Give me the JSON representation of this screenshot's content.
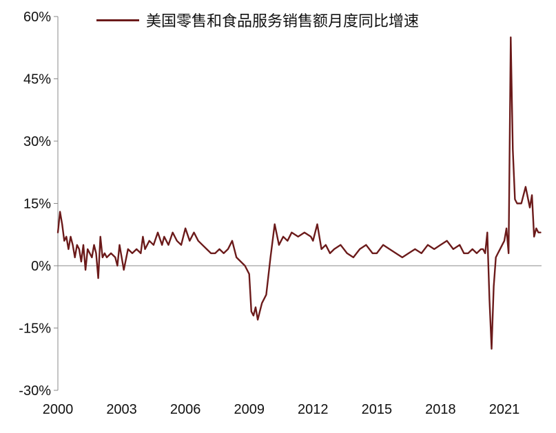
{
  "chart_data": {
    "type": "line",
    "title": "",
    "xlabel": "",
    "ylabel": "",
    "legend_position": "top",
    "grid": false,
    "ylim": [
      -30,
      60
    ],
    "y_ticks": [
      -30,
      -15,
      0,
      15,
      30,
      45,
      60
    ],
    "y_tick_labels": [
      "-30%",
      "-15%",
      "0%",
      "15%",
      "30%",
      "45%",
      "60%"
    ],
    "x_tick_labels": [
      "2000",
      "2003",
      "2006",
      "2009",
      "2012",
      "2015",
      "2018",
      "2021"
    ],
    "series": [
      {
        "name": "美国零售和食品服务销售额月度同比增速",
        "color": "#6b1a1a",
        "x": [
          2000.0,
          2000.1,
          2000.2,
          2000.3,
          2000.4,
          2000.5,
          2000.6,
          2000.7,
          2000.8,
          2000.9,
          2001.0,
          2001.1,
          2001.2,
          2001.3,
          2001.4,
          2001.5,
          2001.6,
          2001.7,
          2001.8,
          2001.9,
          2002.0,
          2002.1,
          2002.2,
          2002.3,
          2002.5,
          2002.7,
          2002.8,
          2002.9,
          2003.0,
          2003.1,
          2003.3,
          2003.5,
          2003.7,
          2003.9,
          2004.0,
          2004.1,
          2004.3,
          2004.5,
          2004.7,
          2004.9,
          2005.0,
          2005.2,
          2005.4,
          2005.6,
          2005.8,
          2006.0,
          2006.2,
          2006.4,
          2006.6,
          2006.8,
          2007.0,
          2007.2,
          2007.4,
          2007.6,
          2007.8,
          2008.0,
          2008.2,
          2008.4,
          2008.6,
          2008.8,
          2009.0,
          2009.1,
          2009.2,
          2009.3,
          2009.4,
          2009.5,
          2009.6,
          2009.8,
          2010.0,
          2010.2,
          2010.4,
          2010.6,
          2010.8,
          2011.0,
          2011.3,
          2011.6,
          2011.9,
          2012.0,
          2012.2,
          2012.4,
          2012.6,
          2012.8,
          2013.0,
          2013.3,
          2013.6,
          2013.9,
          2014.2,
          2014.5,
          2014.8,
          2015.0,
          2015.3,
          2015.6,
          2015.9,
          2016.2,
          2016.5,
          2016.8,
          2017.1,
          2017.4,
          2017.7,
          2018.0,
          2018.3,
          2018.6,
          2018.9,
          2019.1,
          2019.3,
          2019.5,
          2019.7,
          2019.9,
          2020.0,
          2020.1,
          2020.2,
          2020.3,
          2020.4,
          2020.5,
          2020.6,
          2020.7,
          2020.8,
          2020.9,
          2021.0,
          2021.1,
          2021.2,
          2021.3,
          2021.4,
          2021.5,
          2021.6,
          2021.8,
          2022.0,
          2022.2,
          2022.3,
          2022.4,
          2022.5,
          2022.6,
          2022.7
        ],
        "values": [
          8,
          13,
          10,
          6,
          7,
          4,
          7,
          5,
          2,
          5,
          4,
          1,
          5,
          -1,
          4,
          3,
          2,
          5,
          3,
          -3,
          7,
          2,
          3,
          2,
          3,
          2,
          0,
          5,
          2,
          -1,
          4,
          3,
          4,
          3,
          7,
          4,
          6,
          5,
          8,
          5,
          7,
          5,
          8,
          6,
          5,
          9,
          6,
          8,
          6,
          5,
          4,
          3,
          3,
          4,
          3,
          4,
          6,
          2,
          1,
          0,
          -2,
          -11,
          -12,
          -10,
          -13,
          -11,
          -9,
          -7,
          2,
          10,
          5,
          7,
          6,
          8,
          7,
          8,
          7,
          6,
          10,
          4,
          5,
          3,
          4,
          5,
          3,
          2,
          4,
          5,
          3,
          3,
          5,
          4,
          3,
          2,
          3,
          4,
          3,
          5,
          4,
          5,
          6,
          4,
          5,
          3,
          3,
          4,
          3,
          4,
          4,
          3,
          8,
          -8,
          -20,
          -5,
          2,
          3,
          4,
          5,
          6,
          9,
          3,
          55,
          28,
          16,
          15,
          15,
          19,
          14,
          17,
          7,
          9,
          8,
          8
        ]
      }
    ]
  }
}
